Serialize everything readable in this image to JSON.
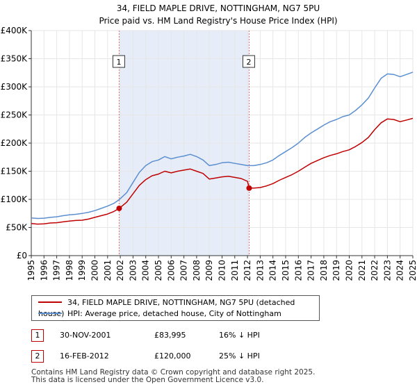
{
  "chart_data": {
    "type": "line",
    "title": "34, FIELD MAPLE DRIVE, NOTTINGHAM, NG7 5PU",
    "subtitle": "Price paid vs. HM Land Registry's House Price Index (HPI)",
    "xlabel": "",
    "ylabel": "",
    "xlim": [
      1995,
      2025
    ],
    "ylim": [
      0,
      400000
    ],
    "x_ticks": [
      "1995",
      "1996",
      "1997",
      "1998",
      "1999",
      "2000",
      "2001",
      "2002",
      "2003",
      "2004",
      "2005",
      "2006",
      "2007",
      "2008",
      "2009",
      "2010",
      "2011",
      "2012",
      "2013",
      "2014",
      "2015",
      "2016",
      "2017",
      "2018",
      "2019",
      "2020",
      "2021",
      "2022",
      "2023",
      "2024",
      "2025"
    ],
    "y_ticks": [
      {
        "value": 0,
        "label": "£0"
      },
      {
        "value": 50000,
        "label": "£50K"
      },
      {
        "value": 100000,
        "label": "£100K"
      },
      {
        "value": 150000,
        "label": "£150K"
      },
      {
        "value": 200000,
        "label": "£200K"
      },
      {
        "value": 250000,
        "label": "£250K"
      },
      {
        "value": 300000,
        "label": "£300K"
      },
      {
        "value": 350000,
        "label": "£350K"
      },
      {
        "value": 400000,
        "label": "£400K"
      }
    ],
    "grid": true,
    "series": [
      {
        "name": "HPI: Average price, detached house, City of Nottingham",
        "color": "#5b8fd0",
        "points": [
          [
            1995.0,
            67000
          ],
          [
            1995.5,
            66000
          ],
          [
            1996.0,
            66500
          ],
          [
            1996.5,
            68000
          ],
          [
            1997.0,
            69000
          ],
          [
            1997.5,
            71000
          ],
          [
            1998.0,
            72500
          ],
          [
            1998.5,
            73500
          ],
          [
            1999.0,
            75000
          ],
          [
            1999.5,
            77000
          ],
          [
            2000.0,
            80000
          ],
          [
            2000.5,
            84000
          ],
          [
            2001.0,
            88000
          ],
          [
            2001.5,
            93000
          ],
          [
            2001.91,
            99500
          ],
          [
            2002.5,
            112000
          ],
          [
            2003.0,
            130000
          ],
          [
            2003.5,
            148000
          ],
          [
            2004.0,
            160000
          ],
          [
            2004.5,
            167000
          ],
          [
            2005.0,
            170000
          ],
          [
            2005.5,
            176000
          ],
          [
            2006.0,
            172000
          ],
          [
            2006.5,
            175000
          ],
          [
            2007.0,
            177000
          ],
          [
            2007.5,
            180000
          ],
          [
            2008.0,
            176000
          ],
          [
            2008.5,
            170000
          ],
          [
            2009.0,
            160000
          ],
          [
            2009.5,
            162000
          ],
          [
            2010.0,
            165000
          ],
          [
            2010.5,
            166000
          ],
          [
            2011.0,
            164000
          ],
          [
            2011.5,
            162000
          ],
          [
            2012.0,
            160000
          ],
          [
            2012.13,
            160000
          ],
          [
            2012.5,
            160000
          ],
          [
            2013.0,
            162000
          ],
          [
            2013.5,
            165000
          ],
          [
            2014.0,
            170000
          ],
          [
            2014.5,
            178000
          ],
          [
            2015.0,
            185000
          ],
          [
            2015.5,
            192000
          ],
          [
            2016.0,
            200000
          ],
          [
            2016.5,
            210000
          ],
          [
            2017.0,
            218000
          ],
          [
            2017.5,
            225000
          ],
          [
            2018.0,
            232000
          ],
          [
            2018.5,
            238000
          ],
          [
            2019.0,
            242000
          ],
          [
            2019.5,
            247000
          ],
          [
            2020.0,
            250000
          ],
          [
            2020.5,
            258000
          ],
          [
            2021.0,
            268000
          ],
          [
            2021.5,
            280000
          ],
          [
            2022.0,
            298000
          ],
          [
            2022.5,
            315000
          ],
          [
            2023.0,
            323000
          ],
          [
            2023.5,
            322000
          ],
          [
            2024.0,
            318000
          ],
          [
            2024.5,
            322000
          ],
          [
            2025.0,
            326000
          ]
        ]
      },
      {
        "name": "34, FIELD MAPLE DRIVE, NOTTINGHAM, NG7 5PU (detached house)",
        "color": "#c00000",
        "points": [
          [
            1995.0,
            57000
          ],
          [
            1995.5,
            56000
          ],
          [
            1996.0,
            56500
          ],
          [
            1996.5,
            58000
          ],
          [
            1997.0,
            58500
          ],
          [
            1997.5,
            60000
          ],
          [
            1998.0,
            61500
          ],
          [
            1998.5,
            62500
          ],
          [
            1999.0,
            63000
          ],
          [
            1999.5,
            65000
          ],
          [
            2000.0,
            68000
          ],
          [
            2000.5,
            71000
          ],
          [
            2001.0,
            74000
          ],
          [
            2001.5,
            78500
          ],
          [
            2001.91,
            83995
          ],
          [
            2002.5,
            95000
          ],
          [
            2003.0,
            110000
          ],
          [
            2003.5,
            125000
          ],
          [
            2004.0,
            135000
          ],
          [
            2004.5,
            142000
          ],
          [
            2005.0,
            145000
          ],
          [
            2005.5,
            150000
          ],
          [
            2006.0,
            147000
          ],
          [
            2006.5,
            150000
          ],
          [
            2007.0,
            152000
          ],
          [
            2007.5,
            154000
          ],
          [
            2008.0,
            150000
          ],
          [
            2008.5,
            146000
          ],
          [
            2009.0,
            136000
          ],
          [
            2009.5,
            138000
          ],
          [
            2010.0,
            140000
          ],
          [
            2010.5,
            141000
          ],
          [
            2011.0,
            139000
          ],
          [
            2011.5,
            137000
          ],
          [
            2012.0,
            132000
          ],
          [
            2012.13,
            120000
          ],
          [
            2012.5,
            120000
          ],
          [
            2013.0,
            121000
          ],
          [
            2013.5,
            124000
          ],
          [
            2014.0,
            128000
          ],
          [
            2014.5,
            134000
          ],
          [
            2015.0,
            139000
          ],
          [
            2015.5,
            144000
          ],
          [
            2016.0,
            150000
          ],
          [
            2016.5,
            157000
          ],
          [
            2017.0,
            164000
          ],
          [
            2017.5,
            169000
          ],
          [
            2018.0,
            174000
          ],
          [
            2018.5,
            178000
          ],
          [
            2019.0,
            181000
          ],
          [
            2019.5,
            185000
          ],
          [
            2020.0,
            188000
          ],
          [
            2020.5,
            194000
          ],
          [
            2021.0,
            201000
          ],
          [
            2021.5,
            210000
          ],
          [
            2022.0,
            224000
          ],
          [
            2022.5,
            236000
          ],
          [
            2023.0,
            243000
          ],
          [
            2023.5,
            242000
          ],
          [
            2024.0,
            238000
          ],
          [
            2024.5,
            241000
          ],
          [
            2025.0,
            244000
          ]
        ]
      }
    ],
    "sales": [
      {
        "label": "1",
        "x": 2001.91,
        "value": 83995
      },
      {
        "label": "2",
        "x": 2012.13,
        "value": 120000
      }
    ],
    "shaded_region": [
      2001.91,
      2012.13
    ],
    "legend": {
      "placement": "below",
      "entries": [
        {
          "label": "34, FIELD MAPLE DRIVE, NOTTINGHAM, NG7 5PU (detached house)",
          "color": "#c00000"
        },
        {
          "label": "HPI: Average price, detached house, City of Nottingham",
          "color": "#5b8fd0"
        }
      ]
    }
  },
  "sales_table": [
    {
      "num": "1",
      "date": "30-NOV-2001",
      "price": "£83,995",
      "hpi": "16% ↓ HPI"
    },
    {
      "num": "2",
      "date": "16-FEB-2012",
      "price": "£120,000",
      "hpi": "25% ↓ HPI"
    }
  ],
  "footer": {
    "line1": "Contains HM Land Registry data © Crown copyright and database right 2025.",
    "line2": "This data is licensed under the Open Government Licence v3.0."
  }
}
